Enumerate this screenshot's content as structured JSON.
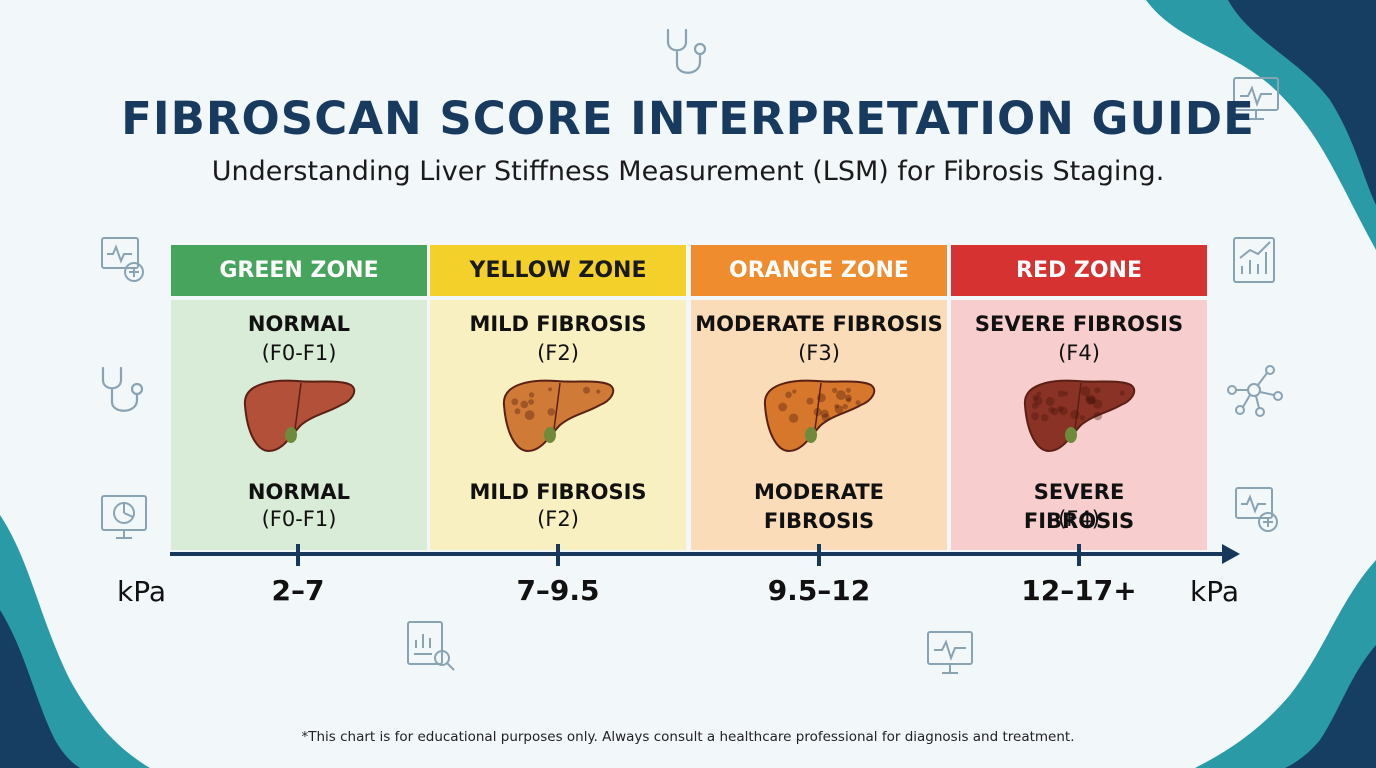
{
  "header": {
    "title": "FIBROSCAN SCORE INTERPRETATION GUIDE",
    "subtitle": "Understanding Liver Stiffness Measurement (LSM) for Fibrosis Staging."
  },
  "colors": {
    "title": "#173a5e",
    "axis": "#17385a",
    "wave_teal": "#2a9ba6",
    "wave_navy": "#163e63"
  },
  "chart_data": {
    "type": "table",
    "axis": {
      "unit_left": "kPa",
      "unit_right": "kPa"
    },
    "zones": [
      {
        "zone": "GREEN ZONE",
        "header_color": "#46a45c",
        "body_color": "#d9ecd7",
        "stage": "NORMAL",
        "code": "(F0-F1)",
        "stage_bottom": "NORMAL",
        "code_bottom": "(F0-F1)",
        "range": "2–7",
        "liver_color": "#b2503a",
        "liver_texture": "smooth"
      },
      {
        "zone": "YELLOW ZONE",
        "header_color": "#f3d02a",
        "body_color": "#f8f0c0",
        "stage": "MILD FIBROSIS",
        "code": "(F2)",
        "stage_bottom": "MILD FIBROSIS",
        "code_bottom": "(F2)",
        "range": "7–9.5",
        "liver_color": "#d07a38",
        "liver_texture": "mild"
      },
      {
        "zone": "ORANGE ZONE",
        "header_color": "#ef8d2e",
        "body_color": "#fbdcb9",
        "stage": "MODERATE FIBROSIS",
        "code": "(F3)",
        "stage_bottom": "MODERATE FIBROSIS",
        "code_bottom": "",
        "range": "9.5–12",
        "liver_color": "#d6772c",
        "liver_texture": "moderate"
      },
      {
        "zone": "RED ZONE",
        "header_color": "#d63232",
        "body_color": "#f7cdcd",
        "stage": "SEVERE FIBROSIS",
        "code": "(F4)",
        "stage_bottom": "SEVERE FIBROSIS",
        "code_bottom": "(F4)",
        "range": "12–17+",
        "liver_color": "#8a3225",
        "liver_texture": "severe"
      }
    ]
  },
  "icons": [
    "stethoscope-icon",
    "monitor-pulse-icon",
    "bar-chart-icon",
    "molecule-icon",
    "pie-chart-icon",
    "medical-doc-icon",
    "analysis-icon"
  ],
  "footnote": "*This chart is for educational purposes only. Always consult a healthcare professional for diagnosis and treatment."
}
